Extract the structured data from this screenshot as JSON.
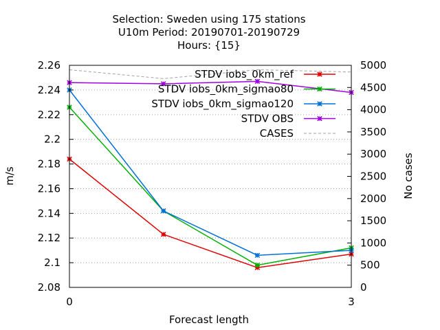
{
  "chart_data": {
    "type": "line",
    "title_lines": [
      "Selection: Sweden using   175 stations",
      "U10m   Period: 20190701-20190729",
      "Hours: {15}"
    ],
    "xlabel": "Forecast length",
    "ylabel": "m/s",
    "y2label": "No cases",
    "x": [
      0,
      1,
      2,
      3
    ],
    "x_ticks": [
      "0",
      "3"
    ],
    "xlim": [
      0,
      3
    ],
    "ylim": [
      2.08,
      2.26
    ],
    "y_ticks": [
      "2.08",
      "2.1",
      "2.12",
      "2.14",
      "2.16",
      "2.18",
      "2.2",
      "2.22",
      "2.24",
      "2.26"
    ],
    "y2lim": [
      0,
      5000
    ],
    "y2_ticks": [
      "0",
      "500",
      "1000",
      "1500",
      "2000",
      "2500",
      "3000",
      "3500",
      "4000",
      "4500",
      "5000"
    ],
    "grid": true,
    "legend_position": "top-right",
    "series": [
      {
        "name": "STDV iobs_0km_ref",
        "color": "#e00000",
        "axis": "y",
        "values": [
          2.184,
          2.123,
          2.096,
          2.107
        ]
      },
      {
        "name": "STDV iobs_0km_sigmao80",
        "color": "#00b000",
        "axis": "y",
        "values": [
          2.226,
          2.142,
          2.098,
          2.112
        ]
      },
      {
        "name": "STDV iobs_0km_sigmao120",
        "color": "#0070d8",
        "axis": "y",
        "values": [
          2.24,
          2.142,
          2.106,
          2.11
        ]
      },
      {
        "name": "STDV OBS",
        "color": "#a000e0",
        "axis": "y",
        "values": [
          2.246,
          2.245,
          2.247,
          2.238
        ]
      },
      {
        "name": "CASES",
        "color": "#a0a0a0",
        "axis": "y2",
        "dashed": true,
        "values": [
          4900,
          4700,
          4900,
          4850
        ]
      }
    ]
  }
}
